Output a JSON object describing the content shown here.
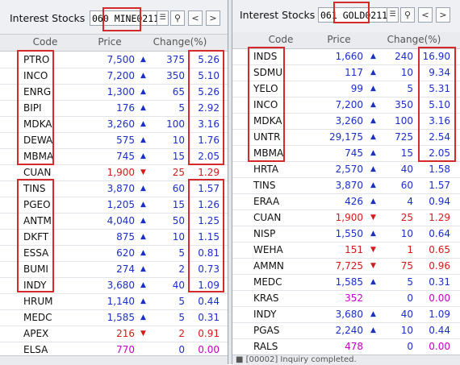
{
  "colors": {
    "up": "#1a2fc8",
    "down": "#d41a1a",
    "unchanged": "#c400c4",
    "highlight": "#d42a2a"
  },
  "left": {
    "title": "Interest Stocks",
    "code_value": "060 MINE0211",
    "columns": [
      "Code",
      "Price",
      "Change(%)"
    ],
    "rows": [
      {
        "code": "PTRO",
        "price": "7,500",
        "dir": "up",
        "change": "375",
        "pct": "5.26"
      },
      {
        "code": "INCO",
        "price": "7,200",
        "dir": "up",
        "change": "350",
        "pct": "5.10"
      },
      {
        "code": "ENRG",
        "price": "1,300",
        "dir": "up",
        "change": "65",
        "pct": "5.26"
      },
      {
        "code": "BIPI",
        "price": "176",
        "dir": "up",
        "change": "5",
        "pct": "2.92"
      },
      {
        "code": "MDKA",
        "price": "3,260",
        "dir": "up",
        "change": "100",
        "pct": "3.16"
      },
      {
        "code": "DEWA",
        "price": "575",
        "dir": "up",
        "change": "10",
        "pct": "1.76"
      },
      {
        "code": "MBMA",
        "price": "745",
        "dir": "up",
        "change": "15",
        "pct": "2.05"
      },
      {
        "code": "CUAN",
        "price": "1,900",
        "dir": "down",
        "change": "25",
        "pct": "1.29"
      },
      {
        "code": "TINS",
        "price": "3,870",
        "dir": "up",
        "change": "60",
        "pct": "1.57"
      },
      {
        "code": "PGEO",
        "price": "1,205",
        "dir": "up",
        "change": "15",
        "pct": "1.26"
      },
      {
        "code": "ANTM",
        "price": "4,040",
        "dir": "up",
        "change": "50",
        "pct": "1.25"
      },
      {
        "code": "DKFT",
        "price": "875",
        "dir": "up",
        "change": "10",
        "pct": "1.15"
      },
      {
        "code": "ESSA",
        "price": "620",
        "dir": "up",
        "change": "5",
        "pct": "0.81"
      },
      {
        "code": "BUMI",
        "price": "274",
        "dir": "up",
        "change": "2",
        "pct": "0.73"
      },
      {
        "code": "INDY",
        "price": "3,680",
        "dir": "up",
        "change": "40",
        "pct": "1.09"
      },
      {
        "code": "HRUM",
        "price": "1,140",
        "dir": "up",
        "change": "5",
        "pct": "0.44"
      },
      {
        "code": "MEDC",
        "price": "1,585",
        "dir": "up",
        "change": "5",
        "pct": "0.31"
      },
      {
        "code": "APEX",
        "price": "216",
        "dir": "down",
        "change": "2",
        "pct": "0.91"
      },
      {
        "code": "ELSA",
        "price": "770",
        "dir": "flat",
        "change": "0",
        "pct": "0.00"
      }
    ],
    "status": ""
  },
  "right": {
    "title": "Interest Stocks",
    "code_value": "061 GOLD0211",
    "columns": [
      "Code",
      "Price",
      "Change(%)"
    ],
    "rows": [
      {
        "code": "INDS",
        "price": "1,660",
        "dir": "up",
        "change": "240",
        "pct": "16.90"
      },
      {
        "code": "SDMU",
        "price": "117",
        "dir": "up",
        "change": "10",
        "pct": "9.34"
      },
      {
        "code": "YELO",
        "price": "99",
        "dir": "up",
        "change": "5",
        "pct": "5.31"
      },
      {
        "code": "INCO",
        "price": "7,200",
        "dir": "up",
        "change": "350",
        "pct": "5.10"
      },
      {
        "code": "MDKA",
        "price": "3,260",
        "dir": "up",
        "change": "100",
        "pct": "3.16"
      },
      {
        "code": "UNTR",
        "price": "29,175",
        "dir": "up",
        "change": "725",
        "pct": "2.54"
      },
      {
        "code": "MBMA",
        "price": "745",
        "dir": "up",
        "change": "15",
        "pct": "2.05"
      },
      {
        "code": "HRTA",
        "price": "2,570",
        "dir": "up",
        "change": "40",
        "pct": "1.58"
      },
      {
        "code": "TINS",
        "price": "3,870",
        "dir": "up",
        "change": "60",
        "pct": "1.57"
      },
      {
        "code": "ERAA",
        "price": "426",
        "dir": "up",
        "change": "4",
        "pct": "0.94"
      },
      {
        "code": "CUAN",
        "price": "1,900",
        "dir": "down",
        "change": "25",
        "pct": "1.29"
      },
      {
        "code": "NISP",
        "price": "1,550",
        "dir": "up",
        "change": "10",
        "pct": "0.64"
      },
      {
        "code": "WEHA",
        "price": "151",
        "dir": "down",
        "change": "1",
        "pct": "0.65"
      },
      {
        "code": "AMMN",
        "price": "7,725",
        "dir": "down",
        "change": "75",
        "pct": "0.96"
      },
      {
        "code": "MEDC",
        "price": "1,585",
        "dir": "up",
        "change": "5",
        "pct": "0.31"
      },
      {
        "code": "KRAS",
        "price": "352",
        "dir": "flat",
        "change": "0",
        "pct": "0.00"
      },
      {
        "code": "INDY",
        "price": "3,680",
        "dir": "up",
        "change": "40",
        "pct": "1.09"
      },
      {
        "code": "PGAS",
        "price": "2,240",
        "dir": "up",
        "change": "10",
        "pct": "0.44"
      },
      {
        "code": "RALS",
        "price": "478",
        "dir": "flat",
        "change": "0",
        "pct": "0.00"
      }
    ],
    "status": "[00002] Inquiry completed."
  },
  "icons": {
    "list": "list-dropdown-icon",
    "search": "search-icon",
    "prev": "chevron-left-icon",
    "next": "chevron-right-icon"
  }
}
